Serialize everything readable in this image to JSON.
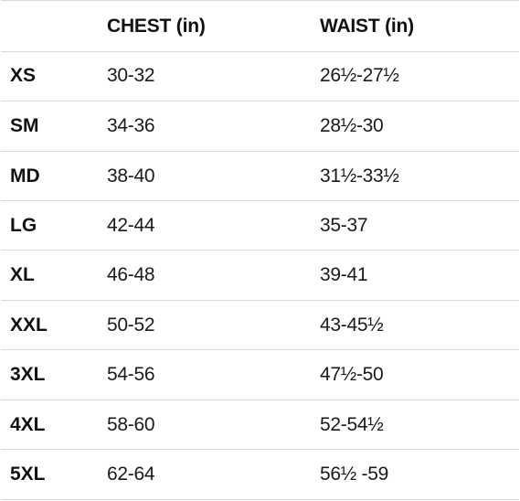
{
  "headers": {
    "size": "",
    "chest": "CHEST (in)",
    "waist": "WAIST (in)"
  },
  "rows": [
    {
      "size": "XS",
      "chest": "30-32",
      "waist": "26½-27½"
    },
    {
      "size": "SM",
      "chest": "34-36",
      "waist": "28½-30"
    },
    {
      "size": "MD",
      "chest": "38-40",
      "waist": "31½-33½"
    },
    {
      "size": "LG",
      "chest": "42-44",
      "waist": "35-37"
    },
    {
      "size": "XL",
      "chest": "46-48",
      "waist": "39-41"
    },
    {
      "size": "XXL",
      "chest": "50-52",
      "waist": "43-45½"
    },
    {
      "size": "3XL",
      "chest": "54-56",
      "waist": "47½-50"
    },
    {
      "size": "4XL",
      "chest": "58-60",
      "waist": "52-54½"
    },
    {
      "size": "5XL",
      "chest": "62-64",
      "waist": "56½ -59"
    }
  ]
}
